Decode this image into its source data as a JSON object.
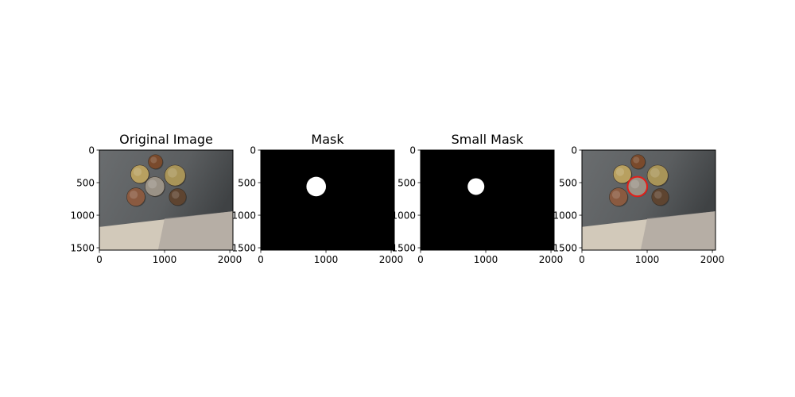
{
  "figure": {
    "background": "#ffffff"
  },
  "chart_data": [
    {
      "type": "image",
      "title": "Original Image",
      "content": "photo",
      "xlim": [
        0,
        2048
      ],
      "ylim": [
        1536,
        0
      ],
      "x_ticks": [
        0,
        1000,
        2000
      ],
      "y_ticks": [
        0,
        500,
        1000,
        1500
      ],
      "x_tick_labels": [
        "0",
        "1000",
        "2000"
      ],
      "y_tick_labels": [
        "0",
        "500",
        "1000",
        "1500"
      ]
    },
    {
      "type": "image",
      "title": "Mask",
      "content": "mask",
      "circle": {
        "cx": 850,
        "cy": 560,
        "r": 150
      },
      "xlim": [
        0,
        2048
      ],
      "ylim": [
        1536,
        0
      ],
      "x_ticks": [
        0,
        1000,
        2000
      ],
      "y_ticks": [
        0,
        500,
        1000,
        1500
      ],
      "x_tick_labels": [
        "0",
        "1000",
        "2000"
      ],
      "y_tick_labels": [
        "0",
        "500",
        "1000",
        "1500"
      ]
    },
    {
      "type": "image",
      "title": "Small Mask",
      "content": "mask",
      "circle": {
        "cx": 850,
        "cy": 560,
        "r": 128
      },
      "xlim": [
        0,
        2048
      ],
      "ylim": [
        1536,
        0
      ],
      "x_ticks": [
        0,
        1000,
        2000
      ],
      "y_ticks": [
        0,
        500,
        1000,
        1500
      ],
      "x_tick_labels": [
        "0",
        "1000",
        "2000"
      ],
      "y_tick_labels": [
        "0",
        "500",
        "1000",
        "1500"
      ]
    },
    {
      "type": "image",
      "title": "",
      "content": "photo",
      "overlay_circle": {
        "cx": 850,
        "cy": 560,
        "r": 150,
        "color": "#e0201a"
      },
      "xlim": [
        0,
        2048
      ],
      "ylim": [
        1536,
        0
      ],
      "x_ticks": [
        0,
        1000,
        2000
      ],
      "y_ticks": [
        0,
        500,
        1000,
        1500
      ],
      "x_tick_labels": [
        "0",
        "1000",
        "2000"
      ],
      "y_tick_labels": [
        "0",
        "500",
        "1000",
        "1500"
      ]
    }
  ],
  "photo": {
    "floor_color": "#5b5e60",
    "paper_color": "#d2c9ba",
    "paper_top_left": 1180,
    "paper_top_right": 940,
    "coins": [
      {
        "cx": 620,
        "cy": 370,
        "r": 140,
        "color": "#b8a060"
      },
      {
        "cx": 860,
        "cy": 180,
        "r": 110,
        "color": "#7a4a2c"
      },
      {
        "cx": 1160,
        "cy": 390,
        "r": 160,
        "color": "#a89458"
      },
      {
        "cx": 850,
        "cy": 560,
        "r": 150,
        "color": "#9a9286"
      },
      {
        "cx": 560,
        "cy": 720,
        "r": 140,
        "color": "#8a5a40"
      },
      {
        "cx": 1200,
        "cy": 720,
        "r": 130,
        "color": "#5e4430"
      }
    ]
  }
}
